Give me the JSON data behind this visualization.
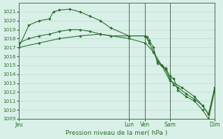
{
  "background_color": "#d8f0e8",
  "grid_color": "#b8ddd0",
  "line_color": "#2d6e2d",
  "marker_color": "#2d6e2d",
  "xlabel": "Pression niveau de la mer( hPa )",
  "ylim": [
    1009,
    1022
  ],
  "yticks": [
    1009,
    1010,
    1011,
    1012,
    1013,
    1014,
    1015,
    1016,
    1017,
    1018,
    1019,
    1020,
    1021
  ],
  "xtick_labels": [
    "Jeu",
    "Lun",
    "Ven",
    "Sam",
    "Dim"
  ],
  "xtick_positions": [
    0,
    54,
    62,
    74,
    96
  ],
  "vline_positions": [
    0,
    54,
    62,
    74,
    96
  ],
  "series": [
    {
      "x": [
        0,
        5,
        10,
        15,
        17,
        20,
        25,
        30,
        35,
        40,
        45,
        54,
        62,
        63,
        64,
        66,
        68,
        70,
        72,
        74,
        76,
        78,
        82,
        86,
        90,
        93,
        96
      ],
      "y": [
        1017.0,
        1019.5,
        1020.0,
        1020.2,
        1021.0,
        1021.2,
        1021.3,
        1021.0,
        1020.5,
        1020.0,
        1019.2,
        1018.3,
        1018.3,
        1018.2,
        1017.8,
        1017.0,
        1015.2,
        1015.0,
        1014.7,
        1013.8,
        1013.5,
        1012.2,
        1011.5,
        1011.0,
        1010.0,
        1009.0,
        1012.2
      ]
    },
    {
      "x": [
        0,
        5,
        10,
        15,
        20,
        25,
        30,
        35,
        40,
        45,
        54,
        62,
        64,
        66,
        68,
        70,
        72,
        74,
        76,
        78,
        82,
        86,
        90,
        93,
        96
      ],
      "y": [
        1017.5,
        1018.0,
        1018.3,
        1018.5,
        1018.8,
        1019.0,
        1019.0,
        1018.8,
        1018.5,
        1018.3,
        1018.3,
        1018.3,
        1017.5,
        1016.5,
        1015.5,
        1015.0,
        1014.5,
        1013.5,
        1012.8,
        1012.5,
        1011.8,
        1011.2,
        1010.5,
        1009.5,
        1012.5
      ]
    },
    {
      "x": [
        0,
        10,
        20,
        30,
        40,
        54,
        62,
        66,
        70,
        74,
        80,
        86,
        90,
        93,
        96
      ],
      "y": [
        1017.0,
        1017.5,
        1018.0,
        1018.3,
        1018.5,
        1018.0,
        1017.5,
        1016.5,
        1015.0,
        1013.3,
        1012.5,
        1011.5,
        1010.5,
        1009.5,
        1012.3
      ]
    }
  ]
}
